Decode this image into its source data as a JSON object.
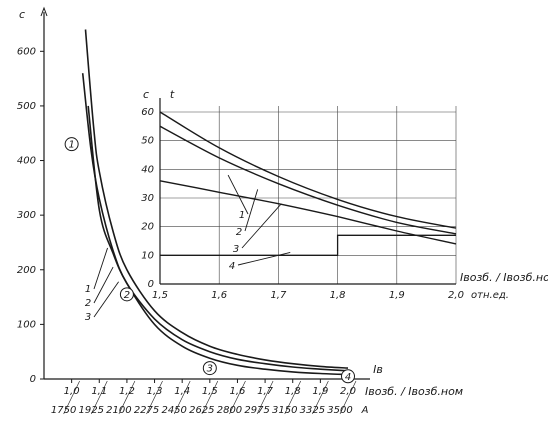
{
  "chart_data": [
    {
      "type": "line",
      "title": "",
      "ylabel": "c",
      "xlabel": "Iвозб. / Iвозб.ном",
      "x_marker": "Iв",
      "x_unit": "A",
      "ylim": [
        0,
        650
      ],
      "xlim": [
        0.9,
        2.0
      ],
      "y_ticks": [
        "0",
        "100",
        "200",
        "300",
        "400",
        "500",
        "600"
      ],
      "x_ticks_rel": [
        "1,0",
        "1,1",
        "1,2",
        "1,3",
        "1,4",
        "1,5",
        "1,6",
        "1,7",
        "1,8",
        "1,9",
        "2,0"
      ],
      "x_ticks_abs": [
        "1750",
        "1925",
        "2100",
        "2275",
        "2450",
        "2625",
        "2800",
        "2975",
        "3150",
        "3325",
        "3500"
      ],
      "series": [
        {
          "name": "1",
          "x": [
            1.05,
            1.08,
            1.1,
            1.15,
            1.2,
            1.3,
            1.4,
            1.5,
            1.6,
            1.7,
            1.8,
            1.9,
            2.0
          ],
          "y": [
            640,
            460,
            380,
            270,
            200,
            125,
            85,
            60,
            45,
            35,
            28,
            23,
            20
          ]
        },
        {
          "name": "2",
          "x": [
            1.04,
            1.07,
            1.1,
            1.15,
            1.2,
            1.3,
            1.4,
            1.5,
            1.6,
            1.7,
            1.8,
            1.9,
            2.0
          ],
          "y": [
            560,
            420,
            330,
            235,
            175,
            110,
            72,
            50,
            36,
            28,
            22,
            18,
            15
          ]
        },
        {
          "name": "3",
          "x": [
            1.06,
            1.1,
            1.15,
            1.2,
            1.3,
            1.4,
            1.5,
            1.6,
            1.7,
            1.8,
            1.9,
            2.0
          ],
          "y": [
            500,
            310,
            230,
            175,
            100,
            60,
            38,
            25,
            18,
            13,
            10,
            8
          ]
        }
      ],
      "point_markers": [
        {
          "label": "1",
          "x": 1.0,
          "y": 430
        },
        {
          "label": "2",
          "x": 1.2,
          "y": 155
        },
        {
          "label": "3",
          "x": 1.5,
          "y": 20
        },
        {
          "label": "4",
          "x": 2.0,
          "y": 5
        }
      ],
      "leader_labels": [
        "1",
        "2",
        "3"
      ]
    },
    {
      "type": "line",
      "title": "",
      "ylabel_left": "c",
      "ylabel_right": "t",
      "xlabel": "Iвозб. / Iвозб.ном",
      "x_unit": "отн.ед.",
      "ylim": [
        0,
        60
      ],
      "xlim": [
        1.5,
        2.0
      ],
      "grid": true,
      "y_ticks": [
        "0",
        "10",
        "20",
        "30",
        "40",
        "50",
        "60"
      ],
      "x_ticks": [
        "1,5",
        "1,6",
        "1,7",
        "1,8",
        "1,9",
        "2,0"
      ],
      "series": [
        {
          "name": "1",
          "x": [
            1.5,
            1.6,
            1.7,
            1.8,
            1.9,
            2.0
          ],
          "y": [
            60,
            47.5,
            37.5,
            29.5,
            23.5,
            19.5
          ]
        },
        {
          "name": "2",
          "x": [
            1.5,
            1.6,
            1.7,
            1.8,
            1.9,
            2.0
          ],
          "y": [
            55,
            44,
            35,
            27.5,
            21.5,
            17.5
          ]
        },
        {
          "name": "3",
          "x": [
            1.5,
            1.6,
            1.7,
            1.8,
            1.9,
            2.0
          ],
          "y": [
            36,
            32,
            28,
            23.5,
            18.5,
            14
          ]
        },
        {
          "name": "4",
          "x": [
            1.5,
            1.8,
            1.8,
            2.0
          ],
          "y": [
            10,
            10,
            17,
            17
          ]
        }
      ],
      "leader_labels": [
        "1",
        "2",
        "3",
        "4"
      ]
    }
  ]
}
